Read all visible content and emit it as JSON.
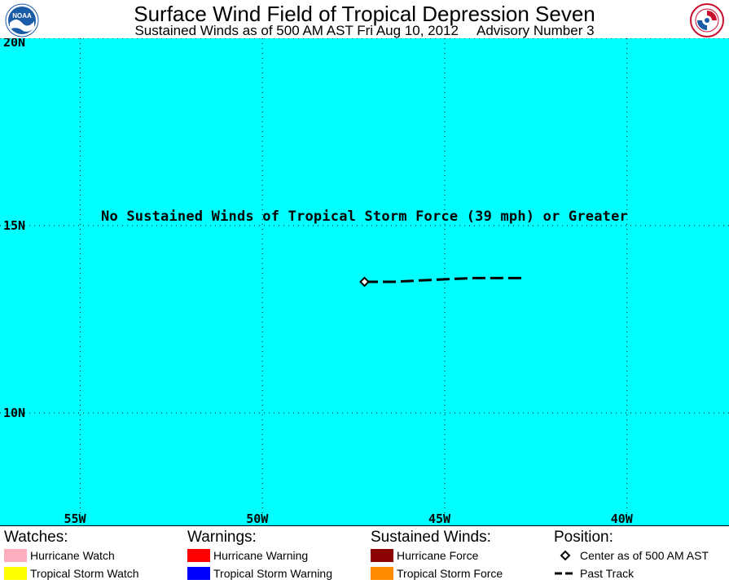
{
  "header": {
    "title": "Surface Wind Field of Tropical Depression Seven",
    "subtitle": "Sustained Winds as of 500 AM AST Fri Aug 10, 2012",
    "advisory": "Advisory Number 3"
  },
  "logos": {
    "left": {
      "name": "noaa-logo",
      "text": "NOAA",
      "color": "#1a5ba8"
    },
    "right": {
      "name": "nws-logo",
      "color": "#c8102e"
    }
  },
  "map": {
    "background_color": "#00ffff",
    "message": "No Sustained Winds of Tropical Storm Force (39 mph) or Greater",
    "lat_range": [
      7.0,
      20.0
    ],
    "lon_range": [
      -57.2,
      -37.2
    ],
    "lat_lines": [
      {
        "value": 20,
        "label": "20N"
      },
      {
        "value": 15,
        "label": "15N"
      },
      {
        "value": 10,
        "label": "10N"
      }
    ],
    "lon_lines": [
      {
        "value": -55,
        "label": "55W"
      },
      {
        "value": -50,
        "label": "50W"
      },
      {
        "value": -45,
        "label": "45W"
      },
      {
        "value": -40,
        "label": "40W"
      }
    ],
    "past_track": [
      {
        "lon": -42.9,
        "lat": 13.6
      },
      {
        "lon": -44.2,
        "lat": 13.6
      },
      {
        "lon": -45.4,
        "lat": 13.55
      },
      {
        "lon": -46.4,
        "lat": 13.5
      },
      {
        "lon": -47.2,
        "lat": 13.5
      }
    ],
    "center": {
      "lon": -47.2,
      "lat": 13.5
    }
  },
  "legend": {
    "watches": {
      "heading": "Watches:",
      "items": [
        {
          "label": "Hurricane Watch",
          "color": "#ffaec0"
        },
        {
          "label": "Tropical Storm Watch",
          "color": "#ffff00"
        }
      ]
    },
    "warnings": {
      "heading": "Warnings:",
      "items": [
        {
          "label": "Hurricane Warning",
          "color": "#ff0000"
        },
        {
          "label": "Tropical Storm Warning",
          "color": "#0000ff"
        }
      ]
    },
    "winds": {
      "heading": "Sustained Winds:",
      "items": [
        {
          "label": "Hurricane Force",
          "color": "#8b0000"
        },
        {
          "label": "Tropical Storm Force",
          "color": "#ff8c00"
        }
      ]
    },
    "position": {
      "heading": "Position:",
      "items": [
        {
          "label": "Center as of 500 AM AST",
          "symbol": "diamond"
        },
        {
          "label": "Past Track",
          "symbol": "dashed-line"
        }
      ]
    }
  }
}
